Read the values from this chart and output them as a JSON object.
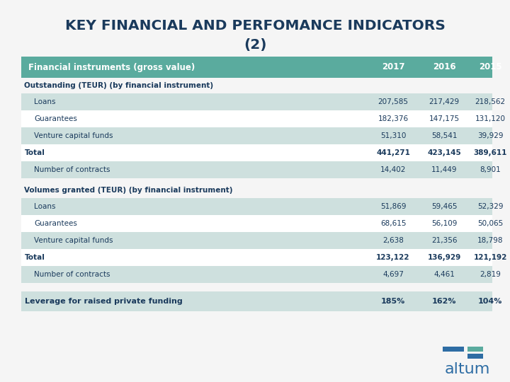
{
  "title_line1": "KEY FINANCIAL AND PERFOMANCE INDICATORS",
  "title_line2": "(2)",
  "title_color": "#1a3a5c",
  "header_bg": "#5aab9e",
  "header_text_color": "#ffffff",
  "header_col0": "Financial instruments (gross value)",
  "header_cols": [
    "2017",
    "2016",
    "2015"
  ],
  "section1_header": "Outstanding (TEUR) (by financial instrument)",
  "section2_header": "Volumes granted (TEUR) (by financial instrument)",
  "rows": [
    {
      "label": "Loans",
      "values": [
        "207,585",
        "217,429",
        "218,562"
      ],
      "indent": true,
      "bold": false,
      "shaded": true,
      "section": 1
    },
    {
      "label": "Guarantees",
      "values": [
        "182,376",
        "147,175",
        "131,120"
      ],
      "indent": true,
      "bold": false,
      "shaded": false,
      "section": 1
    },
    {
      "label": "Venture capital funds",
      "values": [
        "51,310",
        "58,541",
        "39,929"
      ],
      "indent": true,
      "bold": false,
      "shaded": true,
      "section": 1
    },
    {
      "label": "Total",
      "values": [
        "441,271",
        "423,145",
        "389,611"
      ],
      "indent": false,
      "bold": true,
      "shaded": false,
      "section": 1
    },
    {
      "label": "Number of contracts",
      "values": [
        "14,402",
        "11,449",
        "8,901"
      ],
      "indent": true,
      "bold": false,
      "shaded": true,
      "section": 1
    },
    {
      "label": "Loans",
      "values": [
        "51,869",
        "59,465",
        "52,329"
      ],
      "indent": true,
      "bold": false,
      "shaded": true,
      "section": 2
    },
    {
      "label": "Guarantees",
      "values": [
        "68,615",
        "56,109",
        "50,065"
      ],
      "indent": true,
      "bold": false,
      "shaded": false,
      "section": 2
    },
    {
      "label": "Venture capital funds",
      "values": [
        "2,638",
        "21,356",
        "18,798"
      ],
      "indent": true,
      "bold": false,
      "shaded": true,
      "section": 2
    },
    {
      "label": "Total",
      "values": [
        "123,122",
        "136,929",
        "121,192"
      ],
      "indent": false,
      "bold": true,
      "shaded": false,
      "section": 2
    },
    {
      "label": "Number of contracts",
      "values": [
        "4,697",
        "4,461",
        "2,819"
      ],
      "indent": true,
      "bold": false,
      "shaded": true,
      "section": 2
    }
  ],
  "leverage_row": {
    "label": "Leverage for raised private funding",
    "values": [
      "185%",
      "162%",
      "104%"
    ],
    "bold": true
  },
  "shaded_color": "#cee0de",
  "white_color": "#ffffff",
  "text_color": "#1a3a5c",
  "section_header_color": "#1a3a5c",
  "leverage_bg": "#cee0de",
  "bg_color": "#f5f5f5",
  "altum_blue": "#2e6da4",
  "altum_teal": "#5aab9e"
}
